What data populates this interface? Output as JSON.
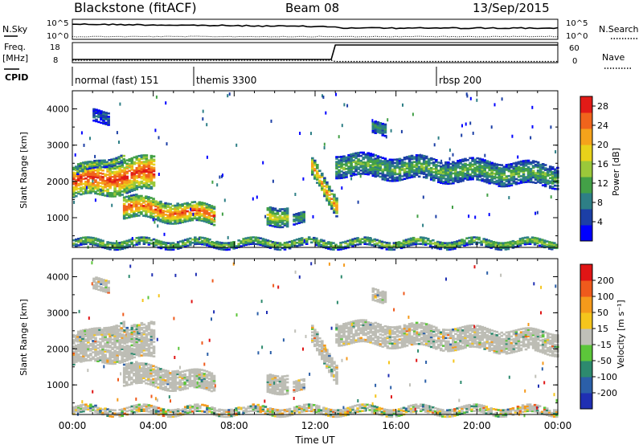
{
  "header": {
    "station": "Blackstone (fitACF)",
    "beam": "Beam 08",
    "date": "13/Sep/2015"
  },
  "aux_labels": {
    "nsky": "N.Sky",
    "nsky_ticks": [
      "10^5",
      "10^0"
    ],
    "nsearch": "N.Search",
    "nsearch_ticks": [
      "10^5",
      "10^0"
    ],
    "freq": "Freq.",
    "freq_unit": "[MHz]",
    "freq_ticks": [
      "18",
      "8"
    ],
    "nave": "Nave",
    "nave_ticks": [
      "60",
      "0"
    ],
    "cpid": "CPID"
  },
  "cpid_segments": [
    {
      "start": 0,
      "end": 6,
      "label": "normal (fast) 151"
    },
    {
      "start": 6,
      "end": 18,
      "label": "themis 3300"
    },
    {
      "start": 18,
      "end": 24,
      "label": "rbsp 200"
    }
  ],
  "chart_data": [
    {
      "type": "heatmap",
      "name": "power",
      "ylabel": "Slant Range [km]",
      "xlabel": "Time UT",
      "x_ticks": [
        "00:00",
        "04:00",
        "08:00",
        "12:00",
        "16:00",
        "20:00",
        "00:00"
      ],
      "xlim": [
        0,
        24
      ],
      "y_ticks": [
        "1000",
        "2000",
        "3000",
        "4000"
      ],
      "ylim": [
        180,
        4500
      ],
      "colorbar": {
        "label": "Power [dB]",
        "ticks": [
          "4",
          "8",
          "12",
          "16",
          "20",
          "24",
          "28"
        ],
        "range": [
          0,
          30
        ],
        "colors": [
          "#0000ff",
          "#1c3fa6",
          "#2e7f86",
          "#43a047",
          "#9bc83a",
          "#e8d21a",
          "#f5a31b",
          "#f0641c",
          "#e21b17"
        ]
      },
      "echo_regions": [
        {
          "t0": 0.0,
          "t1": 4.0,
          "r0_start": 1550,
          "r1_start": 2400,
          "r0_end": 1750,
          "r1_end": 2700,
          "power": 26
        },
        {
          "t0": 0.2,
          "t1": 2.5,
          "r0_start": 2150,
          "r1_start": 2350,
          "r0_end": 2600,
          "r1_end": 2800,
          "power": 14
        },
        {
          "t0": 1.0,
          "t1": 1.8,
          "r0_start": 3600,
          "r1_start": 3950,
          "r0_end": 3600,
          "r1_end": 3950,
          "power": 6
        },
        {
          "t0": 2.5,
          "t1": 7.0,
          "r0_start": 1000,
          "r1_start": 1600,
          "r0_end": 800,
          "r1_end": 1300,
          "power": 24
        },
        {
          "t0": 9.6,
          "t1": 10.6,
          "r0_start": 800,
          "r1_start": 1300,
          "r0_end": 800,
          "r1_end": 1300,
          "power": 16
        },
        {
          "t0": 10.9,
          "t1": 11.4,
          "r0_start": 800,
          "r1_start": 1100,
          "r0_end": 800,
          "r1_end": 1100,
          "power": 12
        },
        {
          "t0": 11.8,
          "t1": 13.0,
          "r0_start": 2100,
          "r1_start": 2600,
          "r0_end": 1100,
          "r1_end": 1600,
          "power": 22
        },
        {
          "t0": 13.0,
          "t1": 24.0,
          "r0_start": 2150,
          "r1_start": 2750,
          "r0_end": 1850,
          "r1_end": 2450,
          "power": 12
        },
        {
          "t0": 14.8,
          "t1": 15.5,
          "r0_start": 3300,
          "r1_start": 3650,
          "r0_end": 3300,
          "r1_end": 3650,
          "power": 10
        },
        {
          "t0": 0.0,
          "t1": 24.0,
          "r0_start": 180,
          "r1_start": 400,
          "r0_end": 180,
          "r1_end": 400,
          "power": 14
        }
      ]
    },
    {
      "type": "heatmap",
      "name": "velocity",
      "ylabel": "Slant Range [km]",
      "xlabel": "Time UT",
      "x_ticks": [
        "00:00",
        "04:00",
        "08:00",
        "12:00",
        "16:00",
        "20:00",
        "00:00"
      ],
      "xlim": [
        0,
        24
      ],
      "y_ticks": [
        "1000",
        "2000",
        "3000",
        "4000"
      ],
      "ylim": [
        180,
        4500
      ],
      "colorbar": {
        "label": "Velocity [m s⁻¹]",
        "ticks": [
          "200",
          "100",
          "50",
          "15",
          "-15",
          "-50",
          "-100",
          "-200"
        ],
        "range": [
          -250,
          250
        ],
        "colors": [
          "#1f2fb3",
          "#2b5fa8",
          "#2d8a6e",
          "#5cc63a",
          "#c0c0b8",
          "#f5c51c",
          "#f59a1b",
          "#ef5a1c",
          "#e01515"
        ]
      },
      "ground_scatter_color": "#bdbdb5"
    }
  ]
}
